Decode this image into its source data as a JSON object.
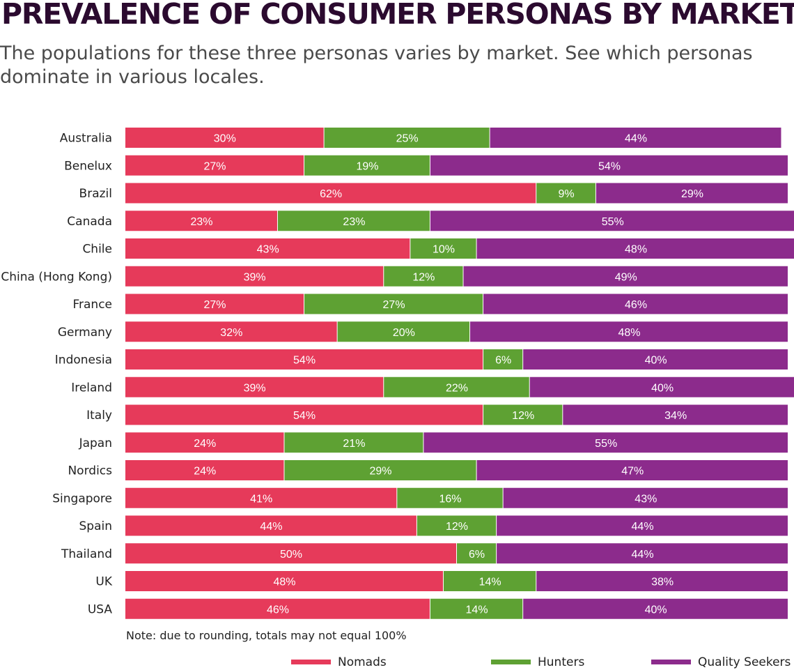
{
  "title": "PREVALENCE OF CONSUMER PERSONAS BY MARKET",
  "subtitle": "The populations for these three personas varies by market. See which personas dominate in various locales.",
  "note": "Note: due to rounding, totals may not equal 100%",
  "chart_data": {
    "type": "bar",
    "orientation": "horizontal",
    "stacked": true,
    "categories": [
      "Australia",
      "Benelux",
      "Brazil",
      "Canada",
      "Chile",
      "China (Hong Kong)",
      "France",
      "Germany",
      "Indonesia",
      "Ireland",
      "Italy",
      "Japan",
      "Nordics",
      "Singapore",
      "Spain",
      "Thailand",
      "UK",
      "USA"
    ],
    "series": [
      {
        "name": "Nomads",
        "color": "#e63a5a",
        "values": [
          30,
          27,
          62,
          23,
          43,
          39,
          27,
          32,
          54,
          39,
          54,
          24,
          24,
          41,
          44,
          50,
          48,
          46
        ]
      },
      {
        "name": "Hunters",
        "color": "#5ea133",
        "values": [
          25,
          19,
          9,
          23,
          10,
          12,
          27,
          20,
          6,
          22,
          12,
          21,
          29,
          16,
          12,
          6,
          14,
          14
        ]
      },
      {
        "name": "Quality Seekers",
        "color": "#8c2b8c",
        "values": [
          44,
          54,
          29,
          55,
          48,
          49,
          46,
          48,
          40,
          40,
          34,
          55,
          47,
          43,
          44,
          44,
          38,
          40
        ]
      }
    ],
    "value_suffix": "%",
    "xlim": [
      0,
      100
    ],
    "grid": false,
    "legend_position": "bottom"
  }
}
